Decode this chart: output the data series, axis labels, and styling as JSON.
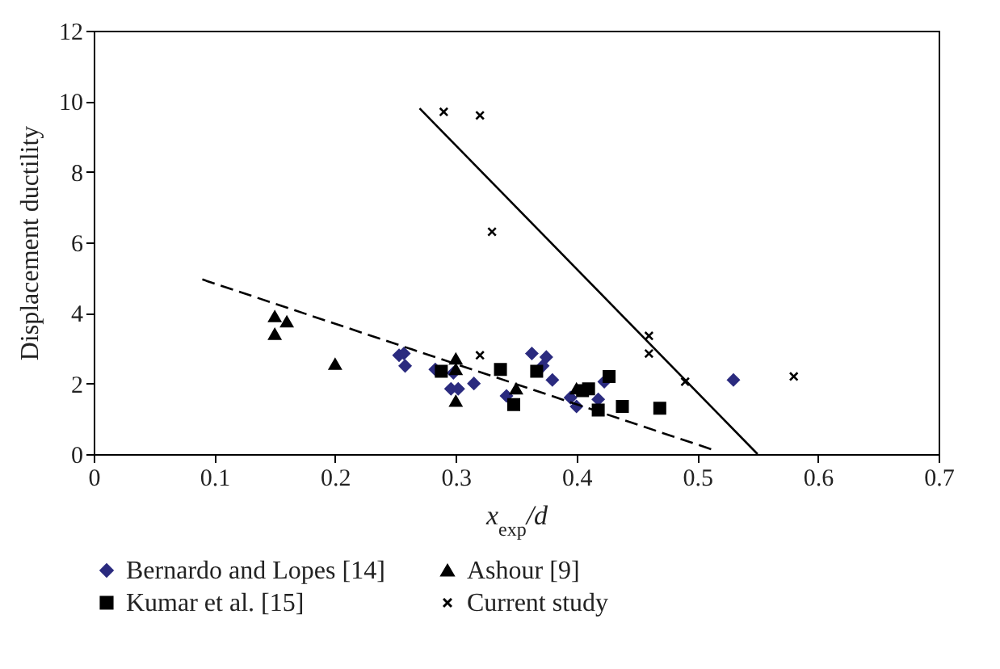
{
  "chart_data": {
    "type": "scatter",
    "xlabel": "x$_{exp}$/d",
    "ylabel": "Displacement ductility",
    "xlim": [
      0,
      0.7
    ],
    "xticks": [
      0,
      0.1,
      0.2,
      0.3,
      0.4,
      0.5,
      0.6,
      0.7
    ],
    "ylim": [
      0,
      12
    ],
    "yticks": [
      0,
      2,
      4,
      6,
      8,
      10,
      12
    ],
    "grid": false,
    "legend": "bottom",
    "series": [
      {
        "name": "Bernardo and Lopes [14]",
        "color": "#2b2b7f",
        "marker": "diamond",
        "x": [
          0.253,
          0.257,
          0.258,
          0.283,
          0.298,
          0.296,
          0.302,
          0.315,
          0.342,
          0.363,
          0.372,
          0.375,
          0.38,
          0.395,
          0.4,
          0.418,
          0.423,
          0.53
        ],
        "values": [
          2.8,
          2.85,
          2.5,
          2.4,
          2.3,
          1.85,
          1.85,
          2.0,
          1.65,
          2.85,
          2.5,
          2.75,
          2.1,
          1.6,
          1.35,
          1.55,
          2.05,
          2.1
        ]
      },
      {
        "name": "Ashour [9]",
        "color": "#000000",
        "marker": "triangle",
        "x": [
          0.15,
          0.15,
          0.16,
          0.2,
          0.3,
          0.3,
          0.3,
          0.35,
          0.4
        ],
        "values": [
          3.9,
          3.4,
          3.75,
          2.55,
          2.7,
          2.4,
          1.5,
          1.85,
          1.85
        ]
      },
      {
        "name": "Kumar et al. [15]",
        "color": "#000000",
        "marker": "square",
        "x": [
          0.288,
          0.337,
          0.348,
          0.367,
          0.405,
          0.41,
          0.418,
          0.427,
          0.438,
          0.469
        ],
        "values": [
          2.35,
          2.4,
          1.4,
          2.35,
          1.8,
          1.85,
          1.25,
          2.2,
          1.35,
          1.3
        ]
      },
      {
        "name": "Current study",
        "color": "#000000",
        "marker": "cross",
        "x": [
          0.29,
          0.32,
          0.33,
          0.32,
          0.46,
          0.46,
          0.49,
          0.58
        ],
        "values": [
          9.7,
          9.6,
          6.3,
          2.8,
          3.35,
          2.85,
          2.05,
          2.2
        ]
      },
      {
        "type": "line",
        "color": "#000000",
        "line_style": "solid",
        "x": [
          0.27,
          0.55
        ],
        "values": [
          9.8,
          0
        ]
      },
      {
        "type": "line",
        "color": "#000000",
        "line_style": "dashed",
        "x": [
          0.09,
          0.515
        ],
        "values": [
          4.95,
          0.1
        ]
      }
    ]
  }
}
